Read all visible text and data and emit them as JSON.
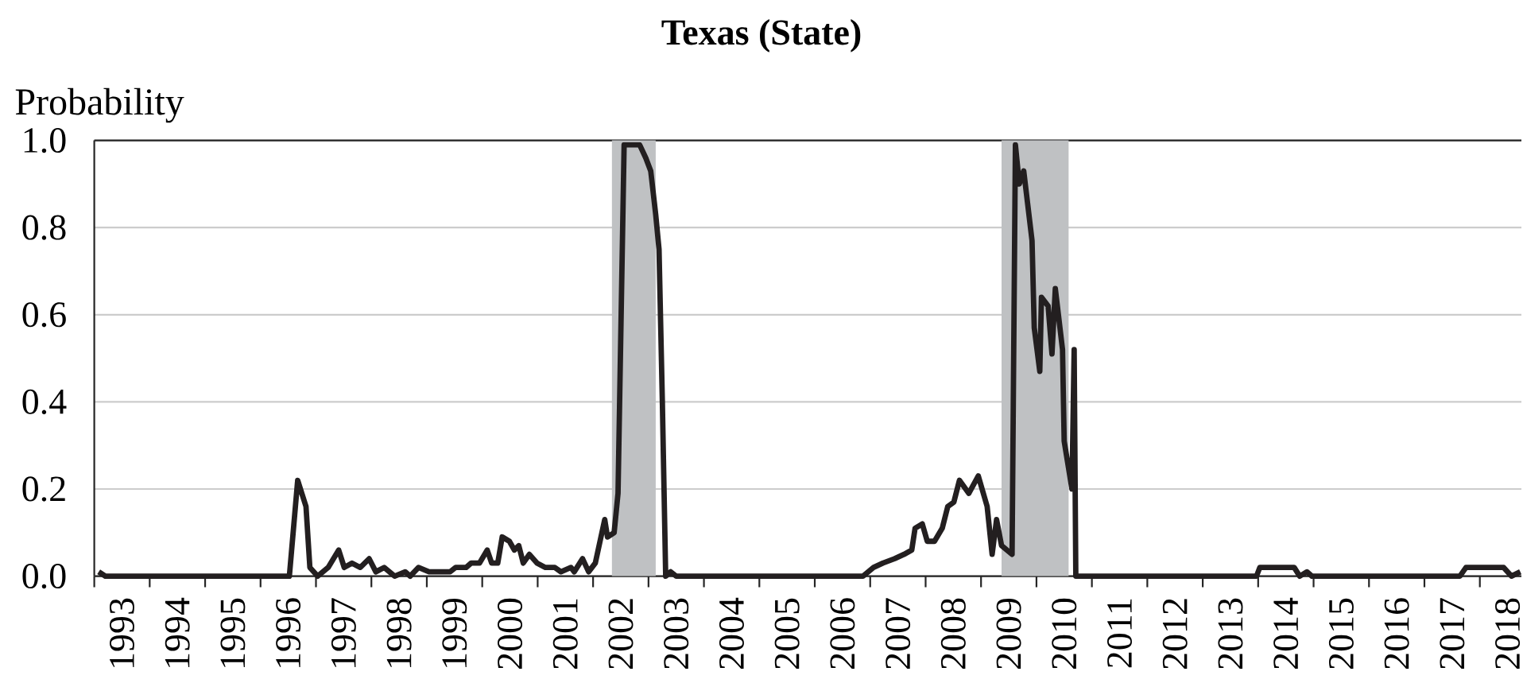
{
  "chart_data": {
    "type": "line",
    "title": "Texas (State)",
    "ylabel": "Probability",
    "x": [
      1993.08,
      1993.2,
      1996.52,
      1996.67,
      1996.82,
      1996.89,
      1997.03,
      1997.22,
      1997.41,
      1997.51,
      1997.65,
      1997.8,
      1997.96,
      1998.08,
      1998.23,
      1998.42,
      1998.61,
      1998.7,
      1998.85,
      1999.04,
      1999.42,
      1999.52,
      1999.71,
      1999.8,
      1999.95,
      2000.09,
      2000.17,
      2000.28,
      2000.36,
      2000.49,
      2000.58,
      2000.66,
      2000.74,
      2000.85,
      2000.99,
      2001.14,
      2001.31,
      2001.42,
      2001.6,
      2001.66,
      2001.81,
      2001.92,
      2002.04,
      2002.21,
      2002.26,
      2002.38,
      2002.45,
      2002.56,
      2002.84,
      2002.95,
      2003.04,
      2003.13,
      2003.19,
      2003.25,
      2003.31,
      2003.4,
      2003.5,
      2006.87,
      2007.06,
      2007.23,
      2007.44,
      2007.61,
      2007.75,
      2007.81,
      2007.94,
      2008.03,
      2008.16,
      2008.3,
      2008.4,
      2008.51,
      2008.61,
      2008.78,
      2008.95,
      2009.11,
      2009.2,
      2009.28,
      2009.37,
      2009.56,
      2009.62,
      2009.69,
      2009.77,
      2009.92,
      2009.96,
      2010.06,
      2010.09,
      2010.21,
      2010.28,
      2010.34,
      2010.47,
      2010.5,
      2010.64,
      2010.68,
      2010.71,
      2013.97,
      2014.03,
      2014.65,
      2014.75,
      2014.88,
      2014.97,
      2017.64,
      2017.75,
      2017.95,
      2018.14,
      2018.43,
      2018.57,
      2018.73
    ],
    "series": [
      {
        "color": "#231f20",
        "values": [
          0.01,
          0.0,
          0.0,
          0.22,
          0.16,
          0.02,
          0.0,
          0.02,
          0.06,
          0.02,
          0.03,
          0.02,
          0.04,
          0.01,
          0.02,
          0.0,
          0.01,
          0.0,
          0.02,
          0.01,
          0.01,
          0.02,
          0.02,
          0.03,
          0.03,
          0.06,
          0.03,
          0.03,
          0.09,
          0.08,
          0.06,
          0.07,
          0.03,
          0.05,
          0.03,
          0.02,
          0.02,
          0.01,
          0.02,
          0.01,
          0.04,
          0.01,
          0.03,
          0.13,
          0.09,
          0.1,
          0.19,
          0.99,
          0.99,
          0.96,
          0.93,
          0.83,
          0.75,
          0.4,
          0.0,
          0.01,
          0.0,
          0.0,
          0.02,
          0.03,
          0.04,
          0.05,
          0.06,
          0.11,
          0.12,
          0.08,
          0.08,
          0.11,
          0.16,
          0.17,
          0.22,
          0.19,
          0.23,
          0.16,
          0.05,
          0.13,
          0.07,
          0.05,
          0.99,
          0.9,
          0.93,
          0.77,
          0.57,
          0.47,
          0.64,
          0.62,
          0.51,
          0.66,
          0.52,
          0.31,
          0.2,
          0.52,
          0.0,
          0.0,
          0.02,
          0.02,
          0.0,
          0.01,
          0.0,
          0.0,
          0.02,
          0.02,
          0.02,
          0.02,
          0.0,
          0.01
        ]
      }
    ],
    "xlim": [
      1993,
      2018.75
    ],
    "ylim": [
      0,
      1
    ],
    "xticks": [
      {
        "value": 1993,
        "label": null
      },
      {
        "value": 1993.5,
        "label": "1993"
      },
      {
        "value": 1994,
        "label": null
      },
      {
        "value": 1994.5,
        "label": "1994"
      },
      {
        "value": 1995,
        "label": null
      },
      {
        "value": 1995.5,
        "label": "1995"
      },
      {
        "value": 1996,
        "label": null
      },
      {
        "value": 1996.5,
        "label": "1996"
      },
      {
        "value": 1997,
        "label": null
      },
      {
        "value": 1997.5,
        "label": "1997"
      },
      {
        "value": 1998,
        "label": null
      },
      {
        "value": 1998.5,
        "label": "1998"
      },
      {
        "value": 1999,
        "label": null
      },
      {
        "value": 1999.5,
        "label": "1999"
      },
      {
        "value": 2000,
        "label": null
      },
      {
        "value": 2000.5,
        "label": "2000"
      },
      {
        "value": 2001,
        "label": null
      },
      {
        "value": 2001.5,
        "label": "2001"
      },
      {
        "value": 2002,
        "label": null
      },
      {
        "value": 2002.5,
        "label": "2002"
      },
      {
        "value": 2003,
        "label": null
      },
      {
        "value": 2003.5,
        "label": "2003"
      },
      {
        "value": 2004,
        "label": null
      },
      {
        "value": 2004.5,
        "label": "2004"
      },
      {
        "value": 2005,
        "label": null
      },
      {
        "value": 2005.5,
        "label": "2005"
      },
      {
        "value": 2006,
        "label": null
      },
      {
        "value": 2006.5,
        "label": "2006"
      },
      {
        "value": 2007,
        "label": null
      },
      {
        "value": 2007.5,
        "label": "2007"
      },
      {
        "value": 2008,
        "label": null
      },
      {
        "value": 2008.5,
        "label": "2008"
      },
      {
        "value": 2009,
        "label": null
      },
      {
        "value": 2009.5,
        "label": "2009"
      },
      {
        "value": 2010,
        "label": null
      },
      {
        "value": 2010.5,
        "label": "2010"
      },
      {
        "value": 2011,
        "label": null
      },
      {
        "value": 2011.5,
        "label": "2011"
      },
      {
        "value": 2012,
        "label": null
      },
      {
        "value": 2012.5,
        "label": "2012"
      },
      {
        "value": 2013,
        "label": null
      },
      {
        "value": 2013.5,
        "label": "2013"
      },
      {
        "value": 2014,
        "label": null
      },
      {
        "value": 2014.5,
        "label": "2014"
      },
      {
        "value": 2015,
        "label": null
      },
      {
        "value": 2015.5,
        "label": "2015"
      },
      {
        "value": 2016,
        "label": null
      },
      {
        "value": 2016.5,
        "label": "2016"
      },
      {
        "value": 2017,
        "label": null
      },
      {
        "value": 2017.5,
        "label": "2017"
      },
      {
        "value": 2018,
        "label": null
      },
      {
        "value": 2018.5,
        "label": "2018"
      }
    ],
    "yticks": [
      {
        "value": 0,
        "label": "0.0"
      },
      {
        "value": 0.2,
        "label": "0.2"
      },
      {
        "value": 0.4,
        "label": "0.4"
      },
      {
        "value": 0.6,
        "label": "0.6"
      },
      {
        "value": 0.8,
        "label": "0.8"
      },
      {
        "value": 1,
        "label": "1.0"
      }
    ],
    "grid": "y",
    "bands": [
      {
        "axis": "x",
        "from": 2002.34,
        "to": 2003.13,
        "color": "#bfc1c3"
      },
      {
        "axis": "x",
        "from": 2009.37,
        "to": 2010.58,
        "color": "#bfc1c3"
      }
    ]
  }
}
